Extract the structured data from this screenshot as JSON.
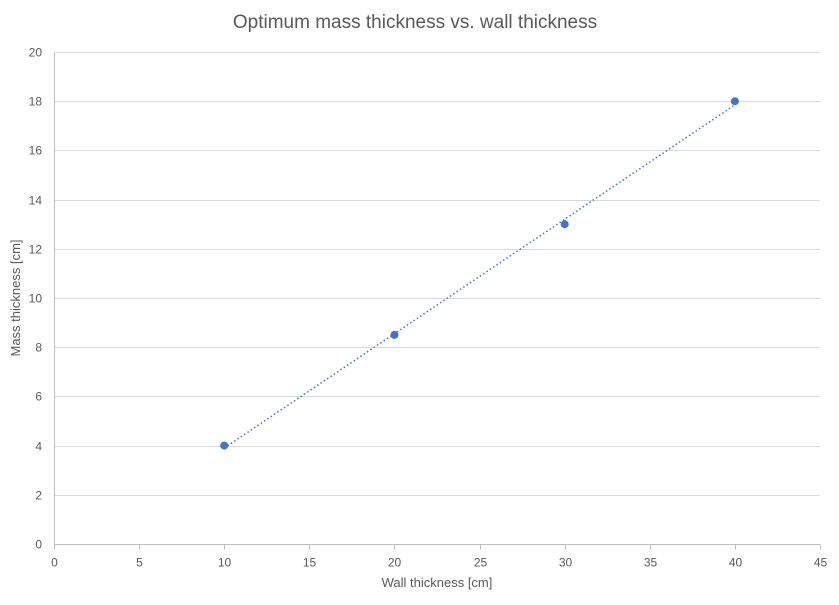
{
  "chart_data": {
    "type": "scatter",
    "title": "Optimum mass thickness vs. wall thickness",
    "xlabel": "Wall thickness [cm]",
    "ylabel": "Mass thickness [cm]",
    "xlim": [
      0,
      45
    ],
    "ylim": [
      0,
      20
    ],
    "x_ticks": [
      0,
      5,
      10,
      15,
      20,
      25,
      30,
      35,
      40,
      45
    ],
    "y_ticks": [
      0,
      2,
      4,
      6,
      8,
      10,
      12,
      14,
      16,
      18,
      20
    ],
    "grid": true,
    "legend": "none",
    "series": [
      {
        "x": [
          10,
          20,
          30,
          40
        ],
        "y": [
          4,
          8.5,
          13,
          18
        ],
        "color": "#4472c4",
        "trendline": "linear-dotted"
      }
    ]
  }
}
